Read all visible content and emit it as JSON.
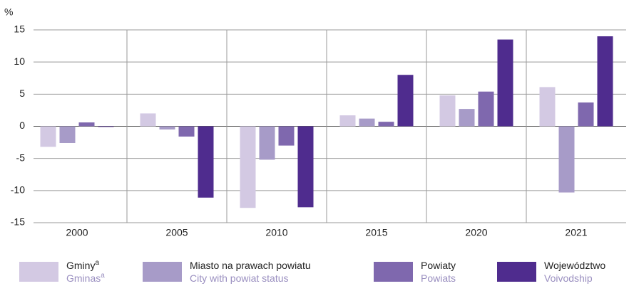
{
  "chart_data": {
    "type": "bar",
    "y_label": "%",
    "categories": [
      "2000",
      "2005",
      "2010",
      "2015",
      "2020",
      "2021"
    ],
    "series": [
      {
        "name": "Gminy",
        "name_en": "Gminas",
        "footnote": "a",
        "color": "#d3c9e3",
        "values": [
          -3.2,
          2.0,
          -12.7,
          1.7,
          4.8,
          6.1
        ]
      },
      {
        "name": "Miasto na prawach powiatu",
        "name_en": "City with powiat status",
        "color": "#a79bc8",
        "values": [
          -2.6,
          -0.5,
          -5.2,
          1.2,
          2.7,
          -10.3
        ]
      },
      {
        "name": "Powiaty",
        "name_en": "Powiats",
        "color": "#7f68ae",
        "values": [
          0.6,
          -1.6,
          -3.0,
          0.7,
          5.4,
          3.7
        ]
      },
      {
        "name": "Województwo",
        "name_en": "Voivodship",
        "color": "#4f2c8e",
        "values": [
          -0.1,
          -11.1,
          -12.6,
          8.0,
          13.5,
          14.0
        ]
      }
    ],
    "ylim": [
      -15,
      15
    ],
    "yticks": [
      -15,
      -10,
      -5,
      0,
      5,
      10,
      15
    ],
    "grid": true
  }
}
